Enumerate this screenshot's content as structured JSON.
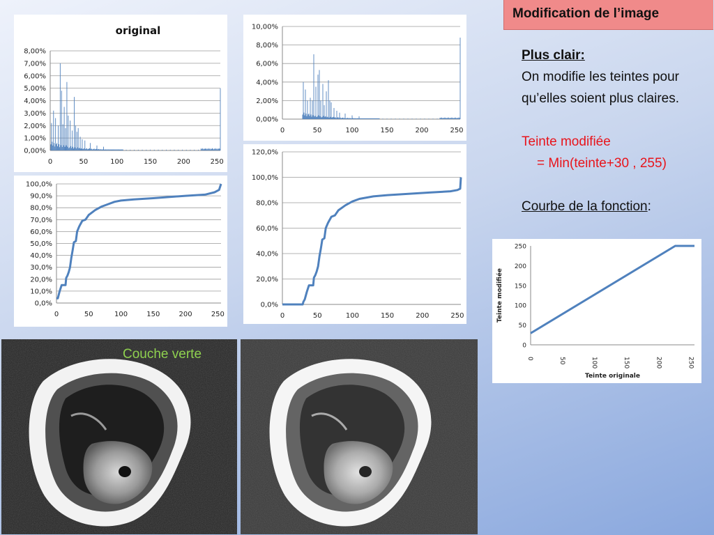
{
  "slide": {
    "title": "Modification de l’image",
    "heading": "Plus clair:",
    "description": "On modifie les teintes pour qu’elles soient plus claires.",
    "formula_label": "Teinte modifiée",
    "formula": "= Min(teinte+30 , 255)",
    "curve_label": "Courbe de la fonction",
    "curve_label_suffix": ":",
    "photo_label": "Couche verte"
  },
  "colors": {
    "line": "#4f81bd",
    "title_bg": "#f08a8a",
    "accent_red": "#e8141b",
    "label_green": "#8fd14f"
  },
  "chart_data": [
    {
      "id": "hist-original",
      "type": "bar",
      "title": "original",
      "x_ticks": [
        "0",
        "50",
        "100",
        "150",
        "200",
        "250"
      ],
      "y_ticks": [
        "0,00%",
        "1,00%",
        "2,00%",
        "3,00%",
        "4,00%",
        "5,00%",
        "6,00%",
        "7,00%",
        "8,00%"
      ],
      "xlim": [
        0,
        255
      ],
      "ylim": [
        0,
        8
      ],
      "grid": true,
      "peaks": [
        [
          2,
          2.2
        ],
        [
          5,
          3.2
        ],
        [
          8,
          2.6
        ],
        [
          12,
          2.0
        ],
        [
          15,
          7.0
        ],
        [
          17,
          4.8
        ],
        [
          19,
          2.1
        ],
        [
          21,
          3.5
        ],
        [
          23,
          1.8
        ],
        [
          25,
          5.5
        ],
        [
          27,
          2.8
        ],
        [
          30,
          2.4
        ],
        [
          33,
          1.6
        ],
        [
          36,
          4.3
        ],
        [
          38,
          2.0
        ],
        [
          40,
          1.5
        ],
        [
          42,
          1.8
        ],
        [
          45,
          1.1
        ],
        [
          48,
          0.9
        ],
        [
          52,
          0.8
        ],
        [
          60,
          0.6
        ],
        [
          70,
          0.4
        ],
        [
          80,
          0.3
        ],
        [
          255,
          5.0
        ]
      ]
    },
    {
      "id": "hist-modified",
      "type": "bar",
      "title": "",
      "x_ticks": [
        "0",
        "50",
        "100",
        "150",
        "200",
        "250"
      ],
      "y_ticks": [
        "0,00%",
        "2,00%",
        "4,00%",
        "6,00%",
        "8,00%",
        "10,00%"
      ],
      "xlim": [
        0,
        255
      ],
      "ylim": [
        0,
        10
      ],
      "grid": true,
      "peaks": [
        [
          30,
          4.0
        ],
        [
          33,
          3.2
        ],
        [
          36,
          2.0
        ],
        [
          40,
          2.3
        ],
        [
          43,
          2.0
        ],
        [
          45,
          7.0
        ],
        [
          48,
          3.5
        ],
        [
          51,
          4.8
        ],
        [
          53,
          5.3
        ],
        [
          55,
          2.0
        ],
        [
          58,
          3.8
        ],
        [
          60,
          1.5
        ],
        [
          63,
          3.0
        ],
        [
          66,
          4.2
        ],
        [
          68,
          2.0
        ],
        [
          70,
          1.8
        ],
        [
          74,
          1.2
        ],
        [
          78,
          0.9
        ],
        [
          82,
          0.7
        ],
        [
          90,
          0.6
        ],
        [
          100,
          0.4
        ],
        [
          110,
          0.3
        ],
        [
          255,
          8.8
        ]
      ]
    },
    {
      "id": "cumul-original",
      "type": "line",
      "title": "",
      "x_ticks": [
        "0",
        "50",
        "100",
        "150",
        "200",
        "250"
      ],
      "y_ticks": [
        "0,0%",
        "10,0%",
        "20,0%",
        "30,0%",
        "40,0%",
        "50,0%",
        "60,0%",
        "70,0%",
        "80,0%",
        "90,0%",
        "100,0%"
      ],
      "xlim": [
        0,
        255
      ],
      "ylim": [
        0,
        100
      ],
      "grid": true,
      "x": [
        0,
        2,
        5,
        8,
        11,
        14,
        15,
        17,
        19,
        21,
        23,
        25,
        27,
        30,
        32,
        35,
        37,
        40,
        45,
        50,
        60,
        70,
        80,
        90,
        100,
        120,
        150,
        200,
        230,
        245,
        252,
        255
      ],
      "y": [
        4,
        4,
        10,
        15,
        15,
        15,
        21,
        23,
        26,
        30,
        38,
        44,
        51,
        52,
        60,
        64,
        66,
        69,
        70,
        74,
        78,
        81,
        83,
        85,
        86,
        87,
        88,
        90,
        91,
        93,
        95,
        100
      ]
    },
    {
      "id": "cumul-modified",
      "type": "line",
      "title": "",
      "x_ticks": [
        "0",
        "50",
        "100",
        "150",
        "200",
        "250"
      ],
      "y_ticks": [
        "0,0%",
        "20,0%",
        "40,0%",
        "60,0%",
        "80,0%",
        "100,0%",
        "120,0%"
      ],
      "xlim": [
        0,
        255
      ],
      "ylim": [
        0,
        120
      ],
      "grid": true,
      "x": [
        0,
        29,
        30,
        32,
        35,
        38,
        40,
        44,
        45,
        47,
        49,
        51,
        53,
        55,
        57,
        60,
        62,
        65,
        67,
        70,
        75,
        80,
        90,
        100,
        110,
        130,
        150,
        180,
        210,
        240,
        250,
        254,
        255
      ],
      "y": [
        0,
        0,
        2,
        4,
        10,
        15,
        15,
        15,
        21,
        23,
        26,
        30,
        38,
        44,
        51,
        52,
        60,
        64,
        66,
        69,
        70,
        74,
        78,
        81,
        83,
        85,
        86,
        87,
        88,
        89,
        90,
        91,
        100
      ]
    },
    {
      "id": "function-curve",
      "type": "line",
      "title": "",
      "xlabel": "Teinte originale",
      "ylabel": "Teinte modifiée",
      "x_ticks": [
        "0",
        "50",
        "100",
        "150",
        "200",
        "250"
      ],
      "y_ticks": [
        "0",
        "50",
        "100",
        "150",
        "200",
        "250"
      ],
      "xlim": [
        0,
        255
      ],
      "ylim": [
        0,
        255
      ],
      "grid": false,
      "x": [
        0,
        225,
        255
      ],
      "y": [
        30,
        255,
        255
      ]
    }
  ]
}
